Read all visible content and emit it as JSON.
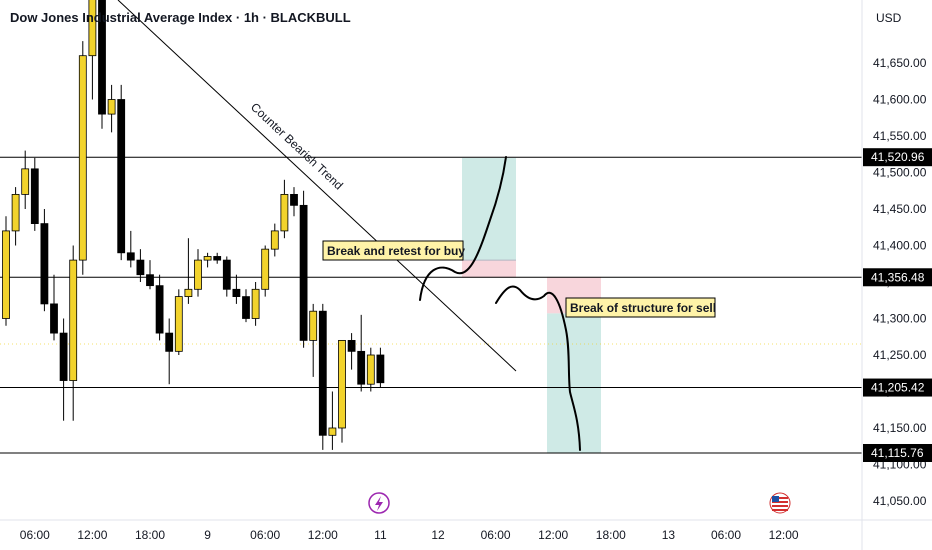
{
  "header": {
    "title": "Dow Jones Industrial Average Index · 1h · BLACKBULL",
    "currency": "USD"
  },
  "chart_data": {
    "type": "candlestick",
    "y_axis": {
      "range": [
        41020,
        41720
      ],
      "tick_labels": [
        "41,650.00",
        "41,600.00",
        "41,550.00",
        "41,500.00",
        "41,450.00",
        "41,400.00",
        "41,350.00",
        "41,300.00",
        "41,250.00",
        "41,200.00",
        "41,150.00",
        "41,100.00",
        "41,050.00"
      ],
      "tick_values": [
        41650,
        41600,
        41550,
        41500,
        41450,
        41400,
        41350,
        41300,
        41250,
        41200,
        41150,
        41100,
        41050
      ]
    },
    "x_axis": {
      "tick_labels": [
        "06:00",
        "12:00",
        "18:00",
        "9",
        "06:00",
        "12:00",
        "11",
        "12",
        "06:00",
        "12:00",
        "18:00",
        "13",
        "06:00",
        "12:00"
      ],
      "tick_index": [
        3,
        9,
        15,
        21,
        27,
        33,
        39,
        45,
        51,
        57,
        63,
        69,
        75,
        81
      ]
    },
    "candles": [
      {
        "o": 41300,
        "h": 41440,
        "l": 41290,
        "c": 41420
      },
      {
        "o": 41420,
        "h": 41480,
        "l": 41400,
        "c": 41470
      },
      {
        "o": 41470,
        "h": 41530,
        "l": 41450,
        "c": 41505
      },
      {
        "o": 41505,
        "h": 41520,
        "l": 41420,
        "c": 41430
      },
      {
        "o": 41430,
        "h": 41450,
        "l": 41310,
        "c": 41320
      },
      {
        "o": 41320,
        "h": 41360,
        "l": 41270,
        "c": 41280
      },
      {
        "o": 41280,
        "h": 41300,
        "l": 41160,
        "c": 41215
      },
      {
        "o": 41215,
        "h": 41400,
        "l": 41160,
        "c": 41380
      },
      {
        "o": 41380,
        "h": 41680,
        "l": 41360,
        "c": 41660
      },
      {
        "o": 41660,
        "h": 41760,
        "l": 41600,
        "c": 41740
      },
      {
        "o": 41740,
        "h": 41740,
        "l": 41560,
        "c": 41580
      },
      {
        "o": 41580,
        "h": 41620,
        "l": 41555,
        "c": 41600
      },
      {
        "o": 41600,
        "h": 41620,
        "l": 41380,
        "c": 41390
      },
      {
        "o": 41390,
        "h": 41420,
        "l": 41370,
        "c": 41380
      },
      {
        "o": 41380,
        "h": 41395,
        "l": 41350,
        "c": 41360
      },
      {
        "o": 41360,
        "h": 41380,
        "l": 41340,
        "c": 41345
      },
      {
        "o": 41345,
        "h": 41360,
        "l": 41270,
        "c": 41280
      },
      {
        "o": 41280,
        "h": 41300,
        "l": 41210,
        "c": 41255
      },
      {
        "o": 41255,
        "h": 41340,
        "l": 41250,
        "c": 41330
      },
      {
        "o": 41330,
        "h": 41410,
        "l": 41320,
        "c": 41340
      },
      {
        "o": 41340,
        "h": 41395,
        "l": 41330,
        "c": 41380
      },
      {
        "o": 41380,
        "h": 41390,
        "l": 41370,
        "c": 41385
      },
      {
        "o": 41385,
        "h": 41390,
        "l": 41375,
        "c": 41380
      },
      {
        "o": 41380,
        "h": 41385,
        "l": 41330,
        "c": 41340
      },
      {
        "o": 41340,
        "h": 41360,
        "l": 41320,
        "c": 41330
      },
      {
        "o": 41330,
        "h": 41340,
        "l": 41295,
        "c": 41300
      },
      {
        "o": 41300,
        "h": 41350,
        "l": 41290,
        "c": 41340
      },
      {
        "o": 41340,
        "h": 41400,
        "l": 41330,
        "c": 41395
      },
      {
        "o": 41395,
        "h": 41430,
        "l": 41385,
        "c": 41420
      },
      {
        "o": 41420,
        "h": 41490,
        "l": 41410,
        "c": 41470
      },
      {
        "o": 41470,
        "h": 41480,
        "l": 41440,
        "c": 41455
      },
      {
        "o": 41455,
        "h": 41475,
        "l": 41260,
        "c": 41270
      },
      {
        "o": 41270,
        "h": 41320,
        "l": 41220,
        "c": 41310
      },
      {
        "o": 41310,
        "h": 41320,
        "l": 41120,
        "c": 41140
      },
      {
        "o": 41140,
        "h": 41200,
        "l": 41120,
        "c": 41150
      },
      {
        "o": 41150,
        "h": 41270,
        "l": 41130,
        "c": 41270
      },
      {
        "o": 41270,
        "h": 41280,
        "l": 41230,
        "c": 41255
      },
      {
        "o": 41255,
        "h": 41305,
        "l": 41200,
        "c": 41210
      },
      {
        "o": 41210,
        "h": 41260,
        "l": 41200,
        "c": 41250
      },
      {
        "o": 41250,
        "h": 41260,
        "l": 41205,
        "c": 41212
      }
    ],
    "horizontal_levels": [
      41520.96,
      41356.48,
      41205.42,
      41115.76
    ],
    "level_labels": [
      "41,520.96",
      "41,356.48",
      "41,205.42",
      "41,115.76"
    ],
    "annotations": [
      {
        "text": "Counter Bearish Trend",
        "kind": "trendline-label"
      },
      {
        "text": "Break and retest for buy",
        "kind": "note"
      },
      {
        "text": "Break of structure for sell",
        "kind": "note"
      }
    ],
    "colors": {
      "bull": "#f2d32c",
      "bear": "#000000",
      "tp_zone": "#cfeae6",
      "sl_zone": "#f8d6dc",
      "note_bg": "#fff3a8",
      "level": "#000000"
    },
    "icons": [
      "lightning-icon",
      "us-flag-icon"
    ]
  }
}
